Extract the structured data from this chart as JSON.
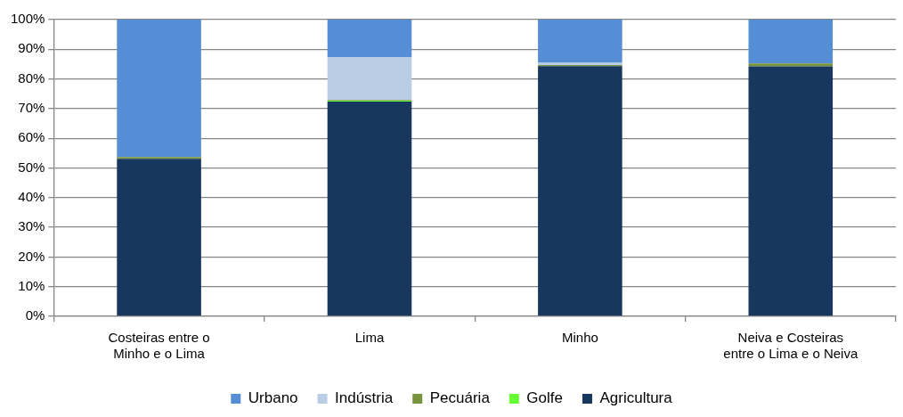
{
  "chart_data": {
    "type": "bar",
    "stacked": true,
    "categories": [
      "Costeiras entre o Minho e o Lima",
      "Lima",
      "Minho",
      "Neiva e Costeiras entre o Lima e o Neiva"
    ],
    "series": [
      {
        "name": "Agricultura",
        "color": "#17375e",
        "values": [
          53.1,
          72.4,
          84.3,
          84.2
        ]
      },
      {
        "name": "Golfe",
        "color": "#66ff33",
        "values": [
          0,
          0.3,
          0,
          0
        ]
      },
      {
        "name": "Pecuária",
        "color": "#77933c",
        "values": [
          0.6,
          0.2,
          0.4,
          1.0
        ]
      },
      {
        "name": "Indústria",
        "color": "#b9cde5",
        "values": [
          0,
          14.5,
          0.7,
          0
        ]
      },
      {
        "name": "Urbano",
        "color": "#558ed5",
        "values": [
          46.3,
          12.6,
          14.6,
          14.8
        ]
      }
    ],
    "ylim": [
      0,
      100
    ],
    "yticks": [
      {
        "value": 0,
        "label": "0%"
      },
      {
        "value": 10,
        "label": "10%"
      },
      {
        "value": 20,
        "label": "20%"
      },
      {
        "value": 30,
        "label": "30%"
      },
      {
        "value": 40,
        "label": "40%"
      },
      {
        "value": 50,
        "label": "50%"
      },
      {
        "value": 60,
        "label": "60%"
      },
      {
        "value": 70,
        "label": "70%"
      },
      {
        "value": 80,
        "label": "80%"
      },
      {
        "value": 90,
        "label": "90%"
      },
      {
        "value": 100,
        "label": "100%"
      }
    ],
    "grid": "y",
    "legend": "bottom"
  }
}
